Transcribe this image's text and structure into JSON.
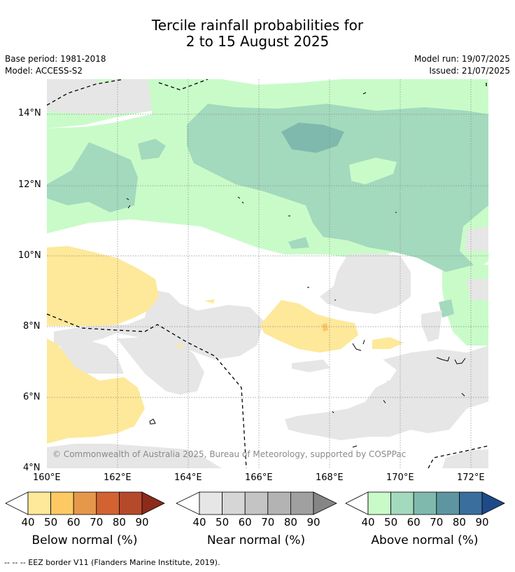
{
  "title_line1": "Tercile rainfall probabilities for",
  "title_line2": "2 to 15 August 2025",
  "base_period": "Base period: 1981-2018",
  "model": "Model: ACCESS-S2",
  "model_run": "Model run: 19/07/2025",
  "issued": "Issued: 21/07/2025",
  "copyright": "© Commonwealth of Australia 2025, Bureau of Meteorology, supported by COSPPac",
  "lat_ticks": [
    "14°N",
    "12°N",
    "10°N",
    "8°N",
    "6°N",
    "4°N"
  ],
  "lon_ticks": [
    "160°E",
    "162°E",
    "164°E",
    "166°E",
    "168°E",
    "170°E",
    "172°E"
  ],
  "colorbars": [
    {
      "name": "below",
      "title": "Below normal (%)",
      "labels": [
        "40",
        "50",
        "60",
        "70",
        "80",
        "90"
      ],
      "colors": [
        "#ffffff",
        "#fee89a",
        "#fdc963",
        "#e5984a",
        "#d26232",
        "#b54a2b",
        "#8c2b1a"
      ]
    },
    {
      "name": "near",
      "title": "Near normal (%)",
      "labels": [
        "40",
        "50",
        "60",
        "70",
        "80",
        "90"
      ],
      "colors": [
        "#ffffff",
        "#e6e6e6",
        "#d6d6d6",
        "#c4c4c4",
        "#b3b3b3",
        "#a0a0a0",
        "#858585"
      ]
    },
    {
      "name": "above",
      "title": "Above normal (%)",
      "labels": [
        "40",
        "50",
        "60",
        "70",
        "80",
        "90"
      ],
      "colors": [
        "#ffffff",
        "#c9fbc9",
        "#a3d9bd",
        "#7fb9ad",
        "#5d96a0",
        "#3a6e9c",
        "#1f4a8a"
      ]
    }
  ],
  "footer": "-- -- -- EEZ border V11 (Flanders Marine Institute, 2019)."
}
